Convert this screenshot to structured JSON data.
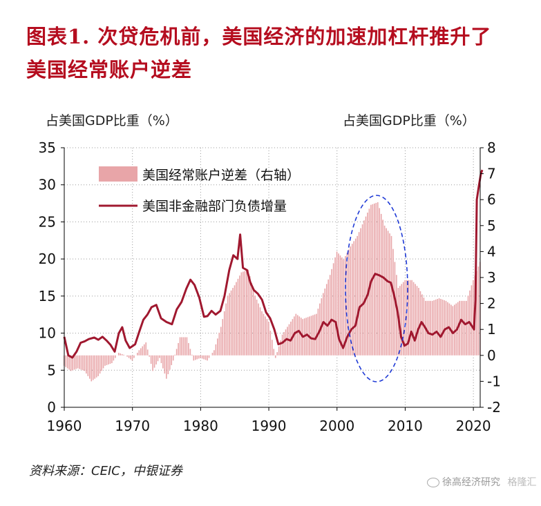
{
  "title_line1": "图表1.  次贷危机前，美国经济的加速加杠杆推升了",
  "title_line2": "美国经常账户逆差",
  "source": "资料来源：CEIC，中银证券",
  "watermark": "徐高经济研究",
  "watermark2": "格隆汇",
  "chart_data": {
    "type": "bar+line",
    "left_axis_label": "占美国GDP比重（%）",
    "right_axis_label": "占美国GDP比重（%）",
    "left_ylim": [
      0,
      35
    ],
    "left_ticks": [
      "0",
      "5",
      "10",
      "15",
      "20",
      "25",
      "30",
      "35"
    ],
    "right_ylim": [
      -2,
      8
    ],
    "right_ticks": [
      "-2",
      "-1",
      "0",
      "1",
      "2",
      "3",
      "4",
      "5",
      "6",
      "7",
      "8"
    ],
    "xlim": [
      1960,
      2021
    ],
    "x_ticks": [
      "1960",
      "1970",
      "1980",
      "1990",
      "2000",
      "2010",
      "2020"
    ],
    "grid": "dotted",
    "legend_position": "top-left",
    "colors": {
      "bars": "#e8a5a8",
      "line": "#a0182f",
      "ellipse": "#1f3ad6"
    },
    "series": [
      {
        "name": "美国经常账户逆差（右轴）",
        "kind": "bar",
        "axis": "right",
        "points": [
          [
            1960,
            -0.4
          ],
          [
            1961,
            -0.6
          ],
          [
            1962,
            -0.5
          ],
          [
            1963,
            -0.6
          ],
          [
            1964,
            -1.0
          ],
          [
            1965,
            -0.8
          ],
          [
            1966,
            -0.4
          ],
          [
            1967,
            -0.3
          ],
          [
            1968,
            0.1
          ],
          [
            1969,
            0.0
          ],
          [
            1970,
            -0.2
          ],
          [
            1971,
            0.2
          ],
          [
            1972,
            0.5
          ],
          [
            1973,
            -0.6
          ],
          [
            1974,
            -0.1
          ],
          [
            1975,
            -0.9
          ],
          [
            1976,
            -0.2
          ],
          [
            1977,
            0.7
          ],
          [
            1978,
            0.7
          ],
          [
            1979,
            -0.2
          ],
          [
            1980,
            -0.1
          ],
          [
            1981,
            -0.2
          ],
          [
            1982,
            0.2
          ],
          [
            1983,
            1.1
          ],
          [
            1984,
            2.3
          ],
          [
            1985,
            2.7
          ],
          [
            1986,
            3.2
          ],
          [
            1987,
            3.3
          ],
          [
            1988,
            2.3
          ],
          [
            1989,
            1.7
          ],
          [
            1990,
            1.3
          ],
          [
            1991,
            -0.1
          ],
          [
            1992,
            0.8
          ],
          [
            1993,
            1.2
          ],
          [
            1994,
            1.6
          ],
          [
            1995,
            1.4
          ],
          [
            1996,
            1.5
          ],
          [
            1997,
            1.6
          ],
          [
            1998,
            2.4
          ],
          [
            1999,
            3.1
          ],
          [
            2000,
            4.0
          ],
          [
            2001,
            3.7
          ],
          [
            2002,
            4.2
          ],
          [
            2003,
            4.6
          ],
          [
            2004,
            5.2
          ],
          [
            2005,
            5.8
          ],
          [
            2006,
            5.9
          ],
          [
            2007,
            5.0
          ],
          [
            2008,
            4.6
          ],
          [
            2009,
            2.6
          ],
          [
            2010,
            2.9
          ],
          [
            2011,
            2.9
          ],
          [
            2012,
            2.6
          ],
          [
            2013,
            2.1
          ],
          [
            2014,
            2.1
          ],
          [
            2015,
            2.2
          ],
          [
            2016,
            2.1
          ],
          [
            2017,
            1.9
          ],
          [
            2018,
            2.1
          ],
          [
            2019,
            2.1
          ],
          [
            2020,
            2.9
          ],
          [
            2021,
            3.6
          ]
        ]
      },
      {
        "name": "美国非金融部门负债增量",
        "kind": "line",
        "axis": "left",
        "points": [
          [
            1960,
            9.5
          ],
          [
            1960.6,
            7.0
          ],
          [
            1961.2,
            6.7
          ],
          [
            1961.8,
            7.5
          ],
          [
            1962.4,
            8.7
          ],
          [
            1963.0,
            8.9
          ],
          [
            1963.6,
            9.2
          ],
          [
            1964.4,
            9.4
          ],
          [
            1965.0,
            9.1
          ],
          [
            1965.6,
            9.5
          ],
          [
            1966.2,
            9.0
          ],
          [
            1966.8,
            8.4
          ],
          [
            1967.4,
            7.5
          ],
          [
            1968.0,
            10.0
          ],
          [
            1968.5,
            10.8
          ],
          [
            1969.0,
            9.0
          ],
          [
            1969.6,
            8.0
          ],
          [
            1970.4,
            8.5
          ],
          [
            1971.0,
            10.2
          ],
          [
            1971.6,
            11.8
          ],
          [
            1972.2,
            12.5
          ],
          [
            1972.8,
            13.5
          ],
          [
            1973.5,
            13.8
          ],
          [
            1974.2,
            12.0
          ],
          [
            1975.0,
            11.5
          ],
          [
            1975.8,
            11.2
          ],
          [
            1976.5,
            13.2
          ],
          [
            1977.2,
            14.2
          ],
          [
            1977.9,
            16.0
          ],
          [
            1978.5,
            17.2
          ],
          [
            1979.1,
            16.5
          ],
          [
            1979.8,
            14.8
          ],
          [
            1980.5,
            12.2
          ],
          [
            1981.0,
            12.3
          ],
          [
            1981.6,
            13.0
          ],
          [
            1982.2,
            12.5
          ],
          [
            1982.9,
            13.0
          ],
          [
            1983.5,
            15.0
          ],
          [
            1984.2,
            18.5
          ],
          [
            1984.8,
            20.5
          ],
          [
            1985.4,
            20.0
          ],
          [
            1985.8,
            23.3
          ],
          [
            1986.2,
            18.8
          ],
          [
            1986.8,
            18.5
          ],
          [
            1987.3,
            16.8
          ],
          [
            1987.8,
            15.8
          ],
          [
            1988.4,
            15.3
          ],
          [
            1989.0,
            14.5
          ],
          [
            1989.6,
            12.8
          ],
          [
            1990.2,
            12.0
          ],
          [
            1990.8,
            10.5
          ],
          [
            1991.4,
            8.5
          ],
          [
            1992.0,
            8.7
          ],
          [
            1992.6,
            9.2
          ],
          [
            1993.2,
            9.0
          ],
          [
            1993.8,
            10.0
          ],
          [
            1994.4,
            10.3
          ],
          [
            1995.0,
            9.5
          ],
          [
            1995.6,
            9.8
          ],
          [
            1996.2,
            9.3
          ],
          [
            1996.8,
            9.2
          ],
          [
            1997.4,
            10.2
          ],
          [
            1998.0,
            11.5
          ],
          [
            1998.6,
            11.0
          ],
          [
            1999.2,
            11.8
          ],
          [
            1999.8,
            11.5
          ],
          [
            2000.3,
            9.2
          ],
          [
            2000.9,
            8.0
          ],
          [
            2001.5,
            9.5
          ],
          [
            2002.1,
            10.5
          ],
          [
            2002.7,
            11.0
          ],
          [
            2003.3,
            13.5
          ],
          [
            2003.9,
            14.0
          ],
          [
            2004.5,
            15.2
          ],
          [
            2005.0,
            17.0
          ],
          [
            2005.6,
            18.0
          ],
          [
            2006.2,
            17.8
          ],
          [
            2006.8,
            17.5
          ],
          [
            2007.4,
            17.0
          ],
          [
            2007.9,
            16.8
          ],
          [
            2008.4,
            15.0
          ],
          [
            2008.9,
            12.8
          ],
          [
            2009.4,
            9.5
          ],
          [
            2009.9,
            8.3
          ],
          [
            2010.4,
            8.6
          ],
          [
            2010.9,
            10.2
          ],
          [
            2011.4,
            9.0
          ],
          [
            2011.9,
            10.5
          ],
          [
            2012.4,
            11.5
          ],
          [
            2012.9,
            10.8
          ],
          [
            2013.4,
            10.0
          ],
          [
            2014.0,
            9.8
          ],
          [
            2014.6,
            10.2
          ],
          [
            2015.2,
            9.5
          ],
          [
            2015.8,
            10.5
          ],
          [
            2016.4,
            10.8
          ],
          [
            2017.0,
            10.0
          ],
          [
            2017.6,
            10.5
          ],
          [
            2018.2,
            11.8
          ],
          [
            2018.8,
            11.2
          ],
          [
            2019.4,
            11.5
          ],
          [
            2019.9,
            10.8
          ],
          [
            2020.1,
            10.5
          ],
          [
            2020.3,
            14.5
          ],
          [
            2020.5,
            28.0
          ],
          [
            2020.8,
            29.8
          ],
          [
            2021.1,
            31.5
          ],
          [
            2021.3,
            32.0
          ]
        ]
      }
    ],
    "annotation": "dashed ellipse around 2000–2008"
  }
}
